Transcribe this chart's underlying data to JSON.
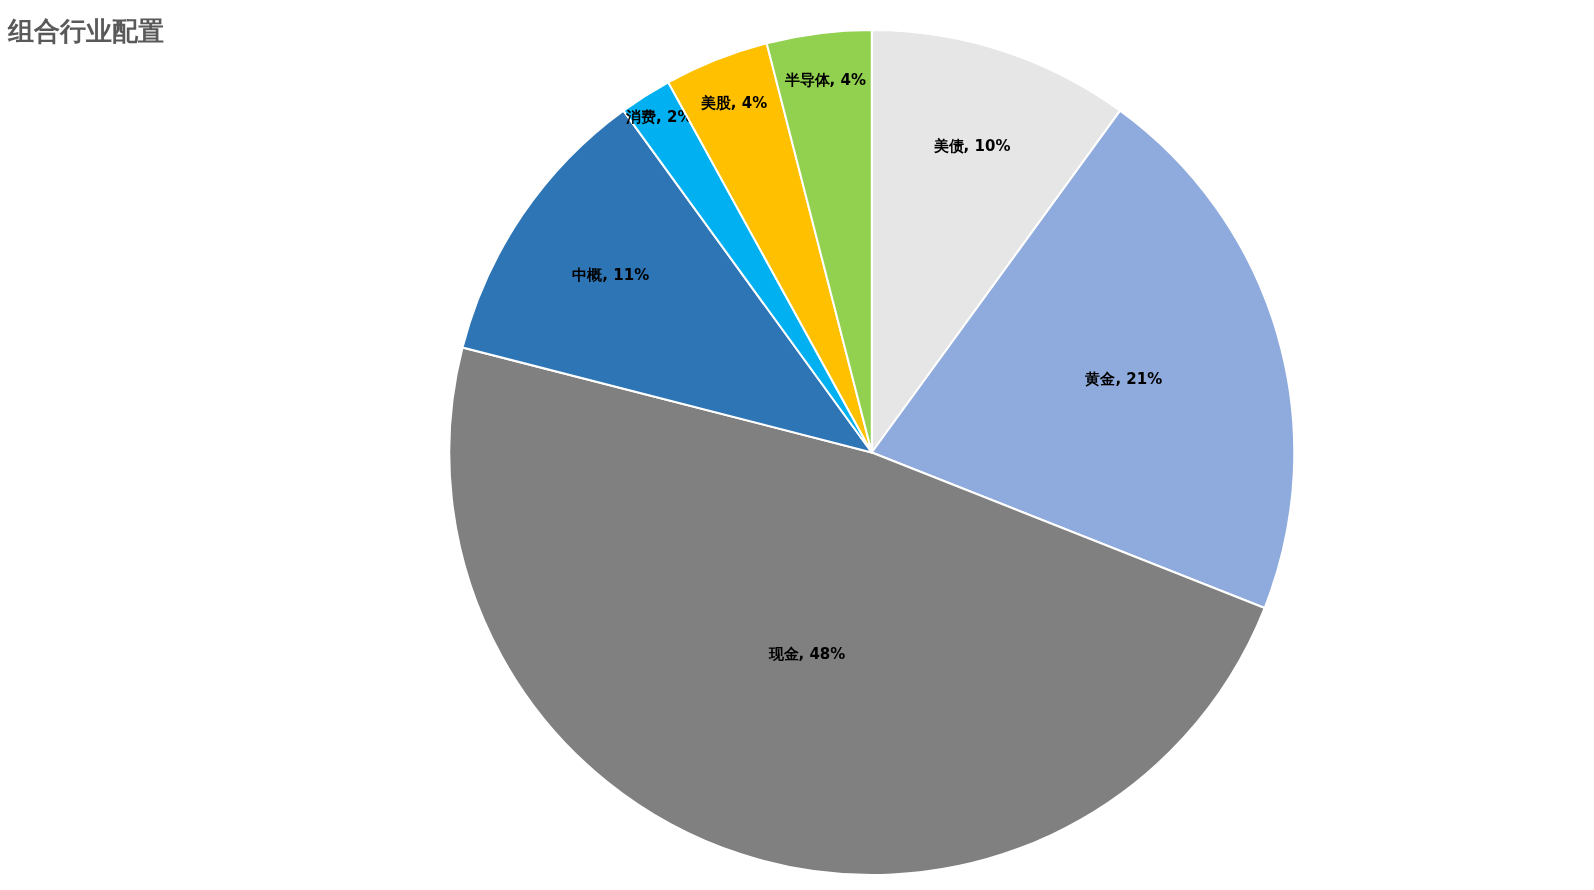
{
  "chart_data": {
    "type": "pie",
    "title": "组合行业配置",
    "categories": [
      "美债",
      "黄金",
      "现金",
      "中概",
      "消费",
      "美股",
      "半导体"
    ],
    "values": [
      10,
      21,
      48,
      11,
      2,
      4,
      4
    ],
    "value_labels": [
      "10%",
      "21%",
      "48%",
      "11%",
      "2%",
      "4%",
      "4%"
    ],
    "colors": [
      "#e6e6e6",
      "#8faadc",
      "#808080",
      "#2e75b6",
      "#00b0f0",
      "#ffc000",
      "#92d050"
    ],
    "legend": false
  }
}
